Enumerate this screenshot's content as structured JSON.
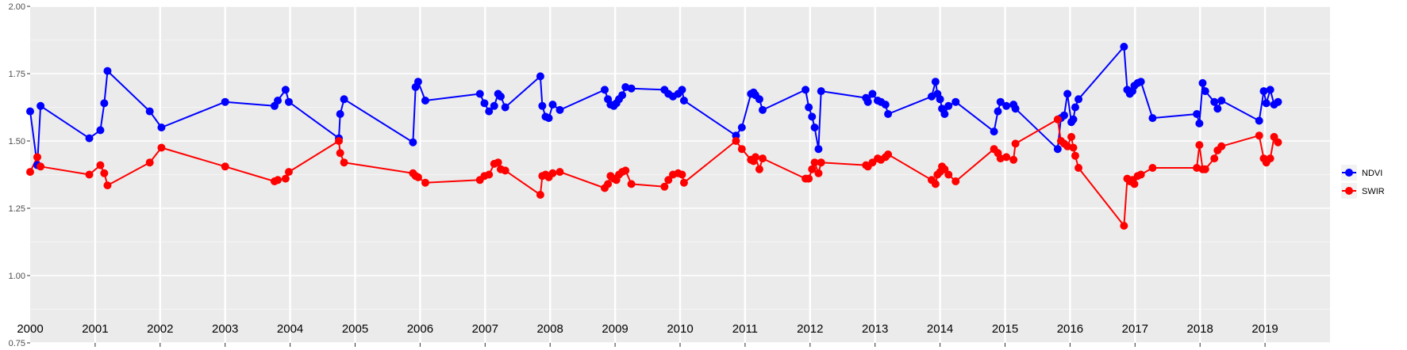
{
  "chart_data": {
    "type": "line",
    "title": "",
    "xlabel": "",
    "ylabel": "",
    "ylim": [
      0.75,
      2.0
    ],
    "yticks": [
      "0.75",
      "1.00",
      "1.25",
      "1.50",
      "1.75",
      "2.00"
    ],
    "xlim": [
      0.0,
      20.0
    ],
    "grid": true,
    "legend_position": "right",
    "panels": [
      "2000",
      "2001",
      "2002",
      "2003",
      "2004",
      "2005",
      "2006",
      "2007",
      "2008",
      "2009",
      "2010",
      "2011",
      "2012",
      "2013",
      "2014",
      "2015",
      "2016",
      "2017",
      "2018",
      "2019"
    ],
    "series": [
      {
        "name": "NDVI",
        "color": "#0000ff",
        "x": [
          0.0,
          0.11,
          0.16,
          0.91,
          1.08,
          1.14,
          1.19,
          1.84,
          2.02,
          3.0,
          3.76,
          3.81,
          3.93,
          3.98,
          4.75,
          4.77,
          4.83,
          5.89,
          5.93,
          5.97,
          6.08,
          6.92,
          6.99,
          7.06,
          7.14,
          7.2,
          7.24,
          7.31,
          7.85,
          7.88,
          7.93,
          7.98,
          8.04,
          8.15,
          8.84,
          8.89,
          8.93,
          8.98,
          9.02,
          9.06,
          9.11,
          9.16,
          9.25,
          9.76,
          9.82,
          9.89,
          9.97,
          10.03,
          10.06,
          10.86,
          10.95,
          11.09,
          11.13,
          11.16,
          11.22,
          11.27,
          11.93,
          11.98,
          12.03,
          12.07,
          12.13,
          12.17,
          12.86,
          12.89,
          12.96,
          13.04,
          13.09,
          13.16,
          13.2,
          13.87,
          13.93,
          13.96,
          14.0,
          14.03,
          14.07,
          14.13,
          14.24,
          14.83,
          14.89,
          14.93,
          15.02,
          15.13,
          15.16,
          15.81,
          15.86,
          15.91,
          15.96,
          16.02,
          16.05,
          16.08,
          16.13,
          16.83,
          16.88,
          16.92,
          16.96,
          16.99,
          17.04,
          17.09,
          17.27,
          17.95,
          17.99,
          18.04,
          18.08,
          18.22,
          18.27,
          18.33,
          18.91,
          18.98,
          19.02,
          19.08,
          19.14,
          19.2
        ],
        "values": [
          1.61,
          1.41,
          1.63,
          1.51,
          1.54,
          1.64,
          1.76,
          1.61,
          1.55,
          1.645,
          1.63,
          1.65,
          1.69,
          1.645,
          1.51,
          1.6,
          1.655,
          1.495,
          1.7,
          1.72,
          1.65,
          1.675,
          1.64,
          1.61,
          1.63,
          1.675,
          1.665,
          1.625,
          1.74,
          1.63,
          1.59,
          1.585,
          1.635,
          1.615,
          1.69,
          1.655,
          1.635,
          1.63,
          1.64,
          1.655,
          1.67,
          1.7,
          1.695,
          1.69,
          1.675,
          1.665,
          1.675,
          1.69,
          1.65,
          1.52,
          1.55,
          1.675,
          1.68,
          1.67,
          1.655,
          1.615,
          1.69,
          1.625,
          1.59,
          1.55,
          1.47,
          1.685,
          1.66,
          1.645,
          1.675,
          1.65,
          1.645,
          1.635,
          1.6,
          1.665,
          1.72,
          1.675,
          1.655,
          1.62,
          1.6,
          1.63,
          1.645,
          1.535,
          1.61,
          1.645,
          1.63,
          1.635,
          1.62,
          1.47,
          1.585,
          1.595,
          1.675,
          1.57,
          1.58,
          1.625,
          1.655,
          1.85,
          1.69,
          1.675,
          1.685,
          1.705,
          1.715,
          1.72,
          1.585,
          1.6,
          1.565,
          1.715,
          1.685,
          1.645,
          1.62,
          1.65,
          1.575,
          1.685,
          1.64,
          1.69,
          1.635,
          1.645
        ]
      },
      {
        "name": "SWIR",
        "color": "#ff0000",
        "x": [
          0.0,
          0.11,
          0.16,
          0.91,
          1.08,
          1.14,
          1.19,
          1.84,
          2.02,
          3.0,
          3.76,
          3.81,
          3.93,
          3.98,
          4.75,
          4.77,
          4.83,
          5.89,
          5.93,
          5.97,
          6.08,
          6.92,
          6.99,
          7.06,
          7.14,
          7.2,
          7.24,
          7.31,
          7.85,
          7.88,
          7.93,
          7.98,
          8.04,
          8.15,
          8.84,
          8.89,
          8.93,
          8.98,
          9.02,
          9.06,
          9.11,
          9.16,
          9.25,
          9.76,
          9.82,
          9.89,
          9.97,
          10.03,
          10.06,
          10.86,
          10.95,
          11.09,
          11.13,
          11.16,
          11.22,
          11.27,
          11.93,
          11.98,
          12.03,
          12.07,
          12.13,
          12.17,
          12.86,
          12.89,
          12.96,
          13.04,
          13.09,
          13.16,
          13.2,
          13.87,
          13.93,
          13.96,
          14.0,
          14.03,
          14.07,
          14.13,
          14.24,
          14.83,
          14.89,
          14.93,
          15.02,
          15.13,
          15.16,
          15.81,
          15.86,
          15.91,
          15.96,
          16.02,
          16.05,
          16.08,
          16.13,
          16.83,
          16.88,
          16.92,
          16.96,
          16.99,
          17.04,
          17.09,
          17.27,
          17.95,
          17.99,
          18.04,
          18.08,
          18.22,
          18.27,
          18.33,
          18.91,
          18.98,
          19.02,
          19.08,
          19.14,
          19.2
        ],
        "values": [
          1.385,
          1.44,
          1.405,
          1.375,
          1.41,
          1.38,
          1.335,
          1.42,
          1.475,
          1.405,
          1.35,
          1.355,
          1.36,
          1.385,
          1.5,
          1.455,
          1.42,
          1.38,
          1.37,
          1.365,
          1.345,
          1.355,
          1.37,
          1.375,
          1.415,
          1.42,
          1.395,
          1.39,
          1.3,
          1.37,
          1.375,
          1.365,
          1.38,
          1.385,
          1.325,
          1.34,
          1.37,
          1.36,
          1.355,
          1.375,
          1.385,
          1.39,
          1.34,
          1.33,
          1.355,
          1.375,
          1.38,
          1.375,
          1.345,
          1.5,
          1.47,
          1.43,
          1.425,
          1.44,
          1.395,
          1.435,
          1.36,
          1.36,
          1.395,
          1.42,
          1.38,
          1.42,
          1.41,
          1.405,
          1.42,
          1.435,
          1.43,
          1.44,
          1.45,
          1.355,
          1.34,
          1.375,
          1.385,
          1.405,
          1.395,
          1.375,
          1.35,
          1.47,
          1.455,
          1.435,
          1.44,
          1.43,
          1.49,
          1.58,
          1.5,
          1.49,
          1.48,
          1.515,
          1.475,
          1.445,
          1.4,
          1.185,
          1.36,
          1.35,
          1.355,
          1.34,
          1.37,
          1.375,
          1.4,
          1.4,
          1.485,
          1.395,
          1.395,
          1.435,
          1.465,
          1.48,
          1.52,
          1.435,
          1.42,
          1.435,
          1.515,
          1.495
        ]
      }
    ]
  }
}
